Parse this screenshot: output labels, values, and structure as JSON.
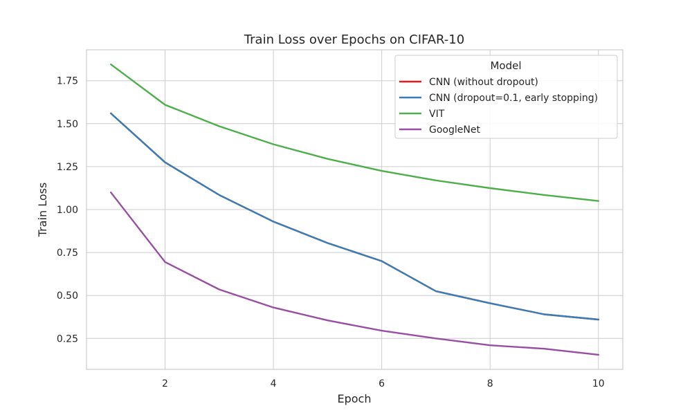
{
  "chart_data": {
    "type": "line",
    "title": "Train Loss over Epochs on CIFAR-10",
    "xlabel": "Epoch",
    "ylabel": "Train Loss",
    "xlim": [
      0.55,
      10.45
    ],
    "ylim": [
      0.07,
      1.93
    ],
    "xticks": [
      2,
      4,
      6,
      8,
      10
    ],
    "xtick_labels": [
      "2",
      "4",
      "6",
      "8",
      "10"
    ],
    "yticks": [
      0.25,
      0.5,
      0.75,
      1.0,
      1.25,
      1.5,
      1.75
    ],
    "ytick_labels": [
      "0.25",
      "0.50",
      "0.75",
      "1.00",
      "1.25",
      "1.50",
      "1.75"
    ],
    "grid": true,
    "legend": {
      "title": "Model",
      "placement": "top-right",
      "entries": [
        {
          "label": "CNN (without dropout)",
          "color": "#e41a1c"
        },
        {
          "label": "CNN (dropout=0.1, early stopping)",
          "color": "#377eb8"
        },
        {
          "label": "VIT",
          "color": "#4daf4a"
        },
        {
          "label": "GoogleNet",
          "color": "#984ea3"
        }
      ]
    },
    "x": [
      1,
      2,
      3,
      4,
      5,
      6,
      7,
      8,
      9,
      10
    ],
    "series": [
      {
        "name": "CNN (without dropout)",
        "color": "#e41a1c",
        "values": [
          1.56,
          1.275,
          1.085,
          0.93,
          0.805,
          0.7,
          0.525,
          0.455,
          0.39,
          0.36
        ]
      },
      {
        "name": "CNN (dropout=0.1, early stopping)",
        "color": "#377eb8",
        "values": [
          1.56,
          1.275,
          1.085,
          0.93,
          0.805,
          0.7,
          0.525,
          0.455,
          0.39,
          0.36
        ]
      },
      {
        "name": "VIT",
        "color": "#4daf4a",
        "values": [
          1.845,
          1.61,
          1.485,
          1.38,
          1.295,
          1.225,
          1.17,
          1.125,
          1.085,
          1.05
        ]
      },
      {
        "name": "GoogleNet",
        "color": "#984ea3",
        "values": [
          1.1,
          0.695,
          0.535,
          0.43,
          0.355,
          0.295,
          0.25,
          0.21,
          0.19,
          0.155
        ]
      }
    ]
  }
}
